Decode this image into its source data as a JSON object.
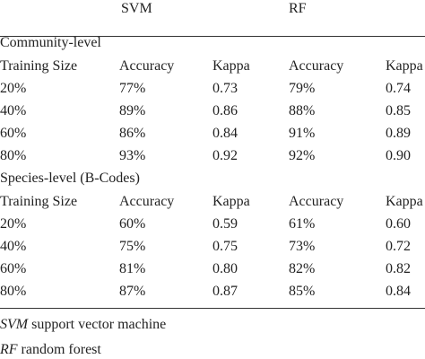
{
  "header": {
    "svm": "SVM",
    "rf": "RF"
  },
  "sections": [
    {
      "title": "Community-level",
      "columns": [
        "Training Size",
        "Accuracy",
        "Kappa",
        "Accuracy",
        "Kappa"
      ],
      "rows": [
        [
          "20%",
          "77%",
          "0.73",
          "79%",
          "0.74"
        ],
        [
          "40%",
          "89%",
          "0.86",
          "88%",
          "0.85"
        ],
        [
          "60%",
          "86%",
          "0.84",
          "91%",
          "0.89"
        ],
        [
          "80%",
          "93%",
          "0.92",
          "92%",
          "0.90"
        ]
      ]
    },
    {
      "title": "Species-level (B-Codes)",
      "columns": [
        "Training Size",
        "Accuracy",
        "Kappa",
        "Accuracy",
        "Kappa"
      ],
      "rows": [
        [
          "20%",
          "60%",
          "0.59",
          "61%",
          "0.60"
        ],
        [
          "40%",
          "75%",
          "0.75",
          "73%",
          "0.72"
        ],
        [
          "60%",
          "81%",
          "0.80",
          "82%",
          "0.82"
        ],
        [
          "80%",
          "87%",
          "0.87",
          "85%",
          "0.84"
        ]
      ]
    }
  ],
  "footnotes": [
    {
      "abbr": "SVM",
      "text": "support vector machine"
    },
    {
      "abbr": "RF",
      "text": "random forest"
    }
  ]
}
